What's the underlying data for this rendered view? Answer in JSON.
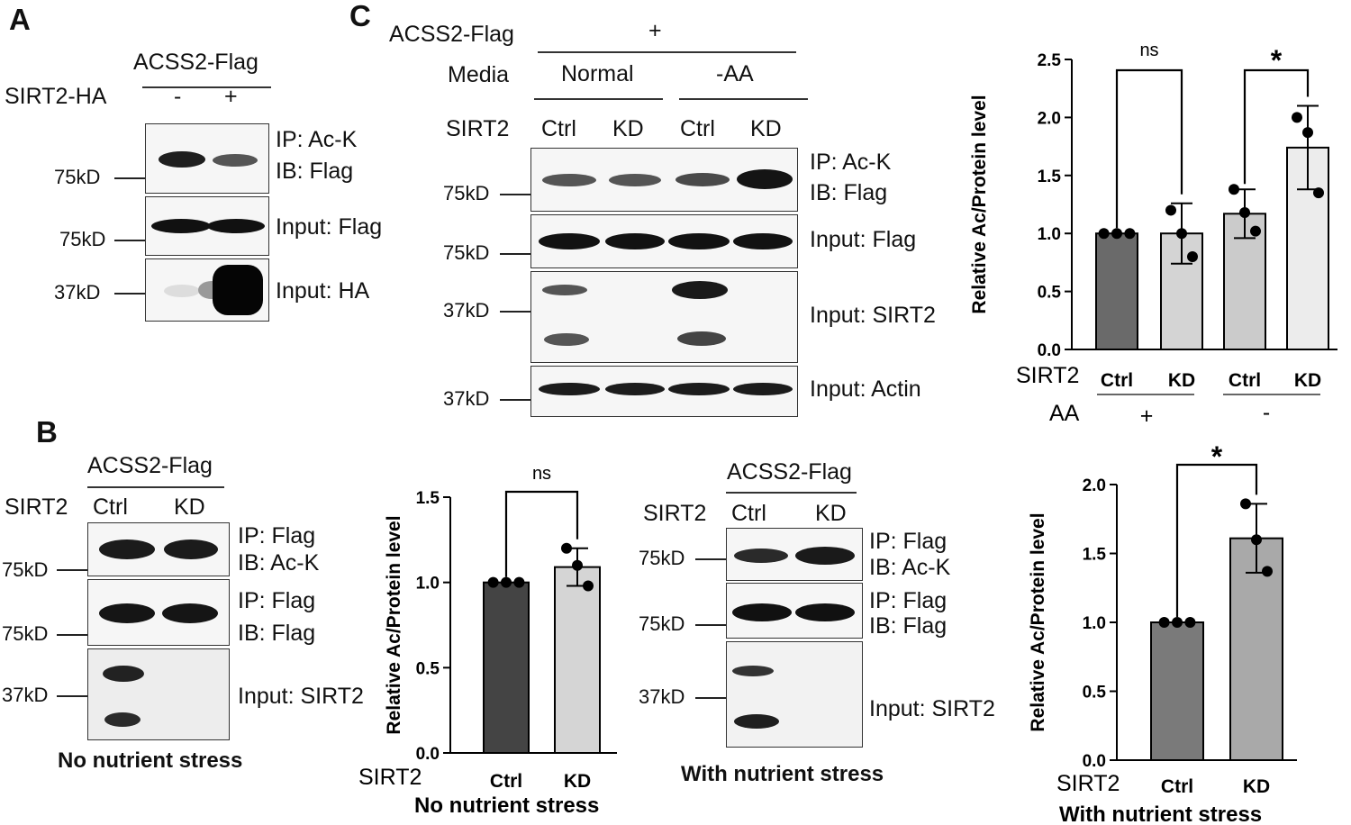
{
  "panels": {
    "A": {
      "letter": "A",
      "header": "ACSS2-Flag",
      "row_label": "SIRT2-HA",
      "lanes": [
        "-",
        "+"
      ],
      "blots": [
        {
          "mw": "75kD",
          "label1": "IP: Ac-K",
          "label2": "IB: Flag"
        },
        {
          "mw": "75kD",
          "label1": "Input: Flag"
        },
        {
          "mw": "37kD",
          "label1": "Input: HA"
        }
      ]
    },
    "B": {
      "letter": "B",
      "header": "ACSS2-Flag",
      "row_label": "SIRT2",
      "lanes": [
        "Ctrl",
        "KD"
      ],
      "blots": [
        {
          "mw": "75kD",
          "label1": "IP: Flag",
          "label2": "IB: Ac-K"
        },
        {
          "mw": "75kD",
          "label1": "IP: Flag",
          "label2": "IB: Flag"
        },
        {
          "mw": "37kD",
          "label1": "Input: SIRT2"
        }
      ],
      "caption": "No nutrient stress"
    },
    "C": {
      "letter": "C",
      "header_label": "ACSS2-Flag",
      "header_value": "+",
      "media_label": "Media",
      "media_groups": [
        "Normal",
        "-AA"
      ],
      "row_label": "SIRT2",
      "lanes": [
        "Ctrl",
        "KD",
        "Ctrl",
        "KD"
      ],
      "blots": [
        {
          "mw": "75kD",
          "label1": "IP: Ac-K",
          "label2": "IB: Flag"
        },
        {
          "mw": "75kD",
          "label1": "Input: Flag"
        },
        {
          "mw": "37kD",
          "label1": "Input: SIRT2"
        },
        {
          "mw": "37kD",
          "label1": "Input: Actin"
        }
      ]
    },
    "D": {
      "header": "ACSS2-Flag",
      "row_label": "SIRT2",
      "lanes": [
        "Ctrl",
        "KD"
      ],
      "blots": [
        {
          "mw": "75kD",
          "label1": "IP: Flag",
          "label2": "IB: Ac-K"
        },
        {
          "mw": "75kD",
          "label1": "IP: Flag",
          "label2": "IB: Flag"
        },
        {
          "mw": "37kD",
          "label1": "Input: SIRT2"
        }
      ],
      "caption": "With nutrient stress"
    }
  },
  "chart_data": [
    {
      "id": "chartC",
      "type": "bar",
      "ylabel": "Relative Ac/Protein level",
      "ylim": [
        0,
        2.5
      ],
      "yticks": [
        "0.0",
        "0.5",
        "1.0",
        "1.5",
        "2.0",
        "2.5"
      ],
      "row_label": "SIRT2",
      "categories": [
        "Ctrl",
        "KD",
        "Ctrl",
        "KD"
      ],
      "values": [
        1.0,
        1.0,
        1.17,
        1.74
      ],
      "errors": [
        0.0,
        0.26,
        0.21,
        0.36
      ],
      "points": [
        [
          1.0,
          1.0,
          1.0
        ],
        [
          1.2,
          1.0,
          0.8
        ],
        [
          1.38,
          1.18,
          1.02
        ],
        [
          2.0,
          1.87,
          1.35
        ]
      ],
      "bar_colors": [
        "#6a6a6a",
        "#d4d4d4",
        "#cbcbcb",
        "#ececec"
      ],
      "group_label": "AA",
      "groups": [
        "+",
        "-"
      ],
      "annotations": [
        "ns",
        "*"
      ]
    },
    {
      "id": "chartB",
      "type": "bar",
      "ylabel": "Relative Ac/Protein level",
      "ylim": [
        0,
        1.5
      ],
      "yticks": [
        "0.0",
        "0.5",
        "1.0",
        "1.5"
      ],
      "row_label": "SIRT2",
      "categories": [
        "Ctrl",
        "KD"
      ],
      "values": [
        1.0,
        1.09
      ],
      "errors": [
        0.0,
        0.11
      ],
      "points": [
        [
          1.0,
          1.0,
          1.0
        ],
        [
          1.2,
          1.1,
          0.98
        ]
      ],
      "bar_colors": [
        "#444444",
        "#d5d5d5"
      ],
      "annotations": [
        "ns"
      ],
      "caption": "No nutrient stress"
    },
    {
      "id": "chartD",
      "type": "bar",
      "ylabel": "Relative Ac/Protein level",
      "ylim": [
        0,
        2.0
      ],
      "yticks": [
        "0.0",
        "0.5",
        "1.0",
        "1.5",
        "2.0"
      ],
      "row_label": "SIRT2",
      "categories": [
        "Ctrl",
        "KD"
      ],
      "values": [
        1.0,
        1.61
      ],
      "errors": [
        0.0,
        0.25
      ],
      "points": [
        [
          1.0,
          1.0,
          1.0
        ],
        [
          1.86,
          1.6,
          1.37
        ]
      ],
      "bar_colors": [
        "#7a7a7a",
        "#a9a9a9"
      ],
      "annotations": [
        "*"
      ],
      "caption": "With nutrient stress"
    }
  ]
}
